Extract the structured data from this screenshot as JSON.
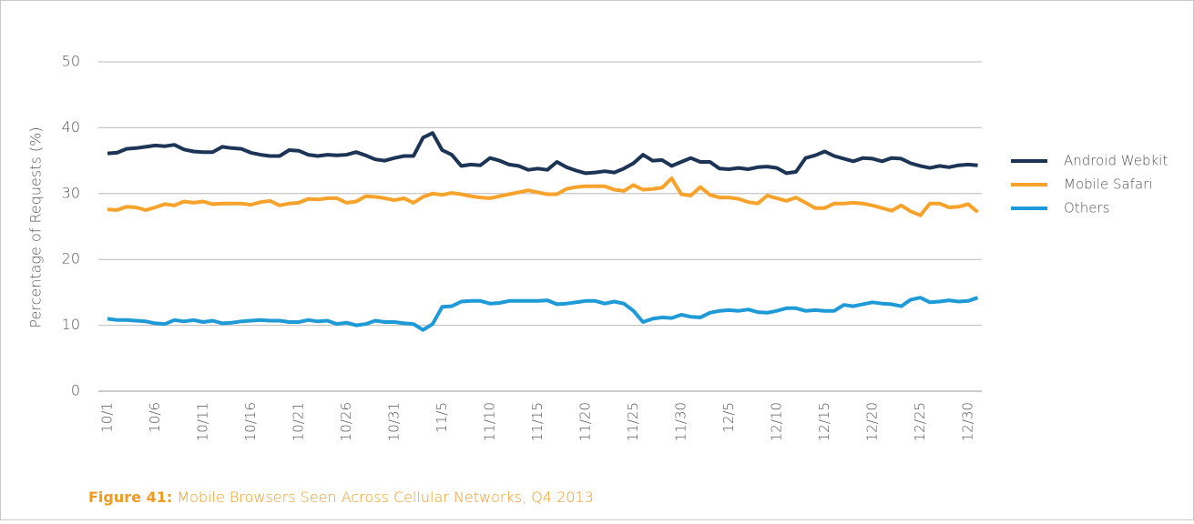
{
  "chart_data": {
    "type": "line",
    "figure_label": "Figure 41:",
    "title": "Mobile Browsers Seen Across Cellular Networks, Q4 2013",
    "y_label": "Percentage of Requests (%)",
    "categories": [
      "10/1",
      null,
      null,
      null,
      null,
      "10/6",
      null,
      null,
      null,
      null,
      "10/11",
      null,
      null,
      null,
      null,
      "10/16",
      null,
      null,
      null,
      null,
      "10/21",
      null,
      null,
      null,
      null,
      "10/26",
      null,
      null,
      null,
      null,
      "10/31",
      null,
      null,
      null,
      null,
      "11/5",
      null,
      null,
      null,
      null,
      "11/10",
      null,
      null,
      null,
      null,
      "11/15",
      null,
      null,
      null,
      null,
      "11/20",
      null,
      null,
      null,
      null,
      "11/25",
      null,
      null,
      null,
      null,
      "11/30",
      null,
      null,
      null,
      null,
      "12/5",
      null,
      null,
      null,
      null,
      "12/10",
      null,
      null,
      null,
      null,
      "12/15",
      null,
      null,
      null,
      null,
      "12/20",
      null,
      null,
      null,
      null,
      "12/25",
      null,
      null,
      null,
      null,
      "12/30",
      null
    ],
    "series": [
      {
        "name": "Android Webkit",
        "color": "#1c3557",
        "values": [
          36.1,
          36.2,
          36.8,
          36.9,
          37.1,
          37.3,
          37.2,
          37.4,
          36.7,
          36.4,
          36.3,
          36.3,
          37.1,
          36.9,
          36.8,
          36.2,
          35.9,
          35.7,
          35.7,
          36.6,
          36.5,
          35.9,
          35.7,
          35.9,
          35.8,
          35.9,
          36.3,
          35.8,
          35.2,
          35.0,
          35.4,
          35.7,
          35.7,
          38.5,
          39.2,
          36.6,
          35.9,
          34.2,
          34.4,
          34.3,
          35.4,
          35.0,
          34.4,
          34.2,
          33.6,
          33.8,
          33.6,
          34.8,
          34.0,
          33.5,
          33.1,
          33.2,
          33.4,
          33.2,
          33.8,
          34.6,
          35.9,
          35.0,
          35.1,
          34.2,
          34.8,
          35.4,
          34.8,
          34.8,
          33.8,
          33.7,
          33.9,
          33.7,
          34.0,
          34.1,
          33.9,
          33.1,
          33.3,
          35.4,
          35.8,
          36.4,
          35.7,
          35.3,
          34.9,
          35.4,
          35.3,
          34.9,
          35.4,
          35.3,
          34.6,
          34.2,
          33.9,
          34.2,
          34.0,
          34.3,
          34.4,
          34.3
        ]
      },
      {
        "name": "Mobile Safari",
        "color": "#f7a22b",
        "values": [
          27.6,
          27.5,
          28.0,
          27.9,
          27.5,
          27.9,
          28.4,
          28.2,
          28.8,
          28.6,
          28.8,
          28.4,
          28.5,
          28.5,
          28.5,
          28.3,
          28.7,
          28.9,
          28.2,
          28.5,
          28.6,
          29.2,
          29.1,
          29.3,
          29.3,
          28.6,
          28.8,
          29.6,
          29.5,
          29.3,
          29.0,
          29.3,
          28.6,
          29.5,
          30.0,
          29.8,
          30.1,
          29.9,
          29.6,
          29.4,
          29.3,
          29.6,
          29.9,
          30.2,
          30.5,
          30.2,
          29.9,
          29.9,
          30.7,
          31.0,
          31.1,
          31.1,
          31.1,
          30.6,
          30.4,
          31.3,
          30.6,
          30.7,
          30.9,
          32.3,
          29.9,
          29.7,
          31.0,
          29.8,
          29.4,
          29.4,
          29.2,
          28.7,
          28.5,
          29.7,
          29.3,
          28.9,
          29.4,
          28.6,
          27.8,
          27.8,
          28.5,
          28.5,
          28.6,
          28.5,
          28.2,
          27.8,
          27.4,
          28.2,
          27.3,
          26.7,
          28.5,
          28.5,
          27.9,
          28.0,
          28.4,
          27.2
        ]
      },
      {
        "name": "Others",
        "color": "#1e9ad6",
        "values": [
          11.0,
          10.8,
          10.8,
          10.7,
          10.6,
          10.3,
          10.2,
          10.8,
          10.6,
          10.8,
          10.5,
          10.7,
          10.3,
          10.4,
          10.6,
          10.7,
          10.8,
          10.7,
          10.7,
          10.5,
          10.5,
          10.8,
          10.6,
          10.7,
          10.2,
          10.4,
          10.0,
          10.2,
          10.7,
          10.5,
          10.5,
          10.3,
          10.2,
          9.3,
          10.2,
          12.8,
          12.9,
          13.6,
          13.7,
          13.7,
          13.3,
          13.4,
          13.7,
          13.7,
          13.7,
          13.7,
          13.8,
          13.2,
          13.3,
          13.5,
          13.7,
          13.7,
          13.3,
          13.6,
          13.3,
          12.2,
          10.5,
          11.0,
          11.2,
          11.1,
          11.6,
          11.3,
          11.2,
          11.9,
          12.2,
          12.3,
          12.2,
          12.4,
          12.0,
          11.9,
          12.2,
          12.6,
          12.6,
          12.2,
          12.3,
          12.2,
          12.2,
          13.1,
          12.9,
          13.2,
          13.5,
          13.3,
          13.2,
          12.9,
          13.9,
          14.2,
          13.5,
          13.6,
          13.8,
          13.6,
          13.7,
          14.2
        ]
      }
    ],
    "ylim": [
      0,
      50
    ],
    "yticks": [
      0,
      10,
      20,
      30,
      40,
      50
    ],
    "grid": true,
    "legend": "right"
  }
}
